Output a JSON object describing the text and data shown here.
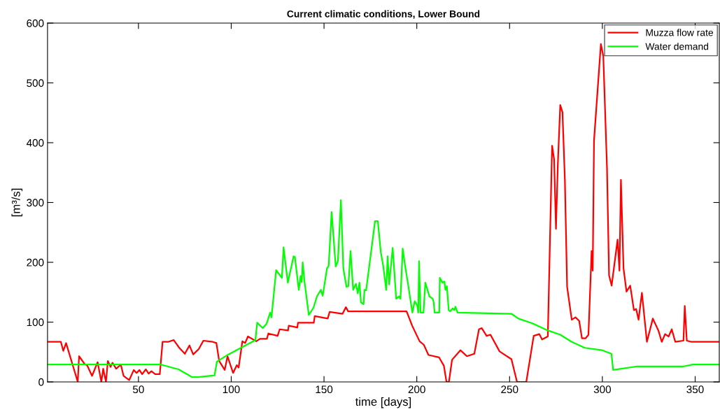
{
  "chart_data": {
    "type": "line",
    "title": "Current climatic conditions, Lower Bound",
    "xlabel": "time [days]",
    "ylabel": "[m³/s]",
    "xlim": [
      1,
      363
    ],
    "ylim": [
      0,
      600
    ],
    "xticks": [
      50,
      100,
      150,
      200,
      250,
      300,
      350
    ],
    "yticks": [
      0,
      100,
      200,
      300,
      400,
      500,
      600
    ],
    "grid": false,
    "legend": "top right",
    "marker": "none",
    "line_style": "solid",
    "series": [
      {
        "name": "Muzza flow rate",
        "color": "#ff0000",
        "x": [
          1,
          8.2,
          9.5,
          11,
          17.3,
          18,
          21,
          22.5,
          25,
          28,
          30,
          31,
          32.5,
          33.5,
          35,
          36,
          38,
          40.5,
          42,
          45,
          47.5,
          49,
          50.5,
          52,
          54,
          55.5,
          57,
          59,
          61.5,
          63,
          66,
          69,
          72,
          75,
          77.5,
          79.5,
          82.5,
          85,
          90,
          92,
          93.5,
          96.5,
          98,
          101,
          103,
          104,
          106,
          107.5,
          109,
          113.5,
          115.5,
          119.2,
          120,
          125,
          126.1,
          130.6,
          131,
          135.6,
          136,
          144.5,
          145,
          152,
          153,
          160,
          161.8,
          163,
          194.5,
          197.5,
          201.5,
          203.8,
          206.3,
          212,
          214.6,
          216,
          217.3,
          219,
          223.5,
          227,
          231,
          233.5,
          235,
          237.6,
          239.7,
          244.6,
          251,
          254,
          259,
          263,
          266,
          267.5,
          270.6,
          272.9,
          274,
          275,
          276,
          277.3,
          278.5,
          279.8,
          281,
          283.5,
          285.5,
          287.5,
          289,
          291,
          292.5,
          294.2,
          294.8,
          295.5,
          299.2,
          300.5,
          302.5,
          303.6,
          305,
          308.2,
          309.2,
          310,
          311.4,
          313,
          315,
          317,
          318.2,
          319.5,
          321.3,
          324,
          327.2,
          330.3,
          332,
          333.8,
          335.7,
          337.4,
          339.3,
          343.7,
          344.4,
          345.5,
          348,
          363
        ],
        "values": [
          67,
          67,
          52,
          65,
          0,
          43,
          30,
          27,
          10,
          33,
          0,
          22,
          0,
          35,
          25,
          32,
          22,
          29,
          10,
          3,
          20,
          15,
          20,
          13,
          21,
          14,
          18,
          13,
          13,
          67,
          67,
          70,
          57,
          47,
          61,
          46,
          55,
          69,
          67,
          65,
          35,
          20,
          43,
          15,
          28,
          24,
          68,
          65,
          76,
          68,
          72,
          72,
          81,
          77,
          88,
          86,
          94,
          91,
          99,
          99,
          110,
          106,
          117,
          114,
          125,
          118,
          118,
          94,
          68,
          62,
          45,
          41,
          27,
          0,
          0,
          37,
          53,
          43,
          47,
          88,
          90,
          77,
          79,
          51,
          38,
          0,
          0,
          77,
          80,
          71,
          76,
          395,
          372,
          256,
          364,
          463,
          451,
          338,
          159,
          104,
          108,
          102,
          73,
          73,
          79,
          219,
          186,
          404,
          565,
          545,
          357,
          178,
          161,
          238,
          186,
          338,
          190,
          151,
          161,
          120,
          122,
          104,
          149,
          67,
          106,
          85,
          67,
          80,
          76,
          88,
          67,
          69,
          127,
          69,
          67,
          67
        ]
      },
      {
        "name": "Water demand",
        "color": "#00ff00",
        "x": [
          1,
          62.2,
          71.6,
          79,
          82,
          91,
          92.3,
          98.5,
          113,
          114,
          117,
          119,
          121,
          121.7,
          124.2,
          127.3,
          128.2,
          130.5,
          133.6,
          134.3,
          136.4,
          137.4,
          138,
          138.5,
          139.4,
          141.8,
          144.3,
          146.2,
          148.3,
          149.3,
          151.6,
          152.5,
          154.1,
          156.3,
          157.5,
          159.1,
          160.4,
          162.1,
          163.1,
          164.3,
          165.7,
          167.2,
          168.2,
          169.1,
          169.9,
          171.3,
          171.8,
          172.7,
          177.5,
          179,
          180.6,
          181.9,
          183.5,
          184.3,
          185.1,
          187,
          188.9,
          190.5,
          191.2,
          192.4,
          193.7,
          195.3,
          197.6,
          198.9,
          200.2,
          200.8,
          201.2,
          202,
          203.6,
          204.6,
          206.8,
          208.6,
          209.1,
          209.6,
          212.1,
          212.4,
          213.9,
          214.9,
          215.4,
          216.2,
          217.2,
          218,
          219.3,
          220.3,
          220.8,
          222,
          251,
          254.7,
          262.3,
          269.8,
          277.3,
          283.5,
          290.5,
          299.9,
          304.9,
          305.8,
          318.7,
          343.8,
          348.8,
          363
        ],
        "values": [
          29,
          29,
          21,
          8,
          8,
          11,
          34,
          46,
          70,
          99,
          90,
          97,
          116,
          108,
          187,
          174,
          225,
          166,
          210,
          209,
          154,
          177,
          167,
          200,
          170,
          112,
          124,
          143,
          154,
          144,
          190,
          194,
          284,
          193,
          202,
          304,
          190,
          159,
          160,
          219,
          154,
          164,
          148,
          166,
          133,
          130,
          154,
          153,
          269,
          269,
          217,
          194,
          154,
          210,
          163,
          224,
          139,
          143,
          139,
          223,
          194,
          163,
          116,
          135,
          128,
          116,
          202,
          116,
          116,
          166,
          143,
          139,
          133,
          116,
          116,
          174,
          166,
          168,
          154,
          160,
          120,
          118,
          123,
          120,
          126,
          116,
          114,
          106,
          98,
          87,
          79,
          67,
          57,
          53,
          47,
          20,
          26,
          26,
          29,
          29
        ]
      }
    ]
  }
}
